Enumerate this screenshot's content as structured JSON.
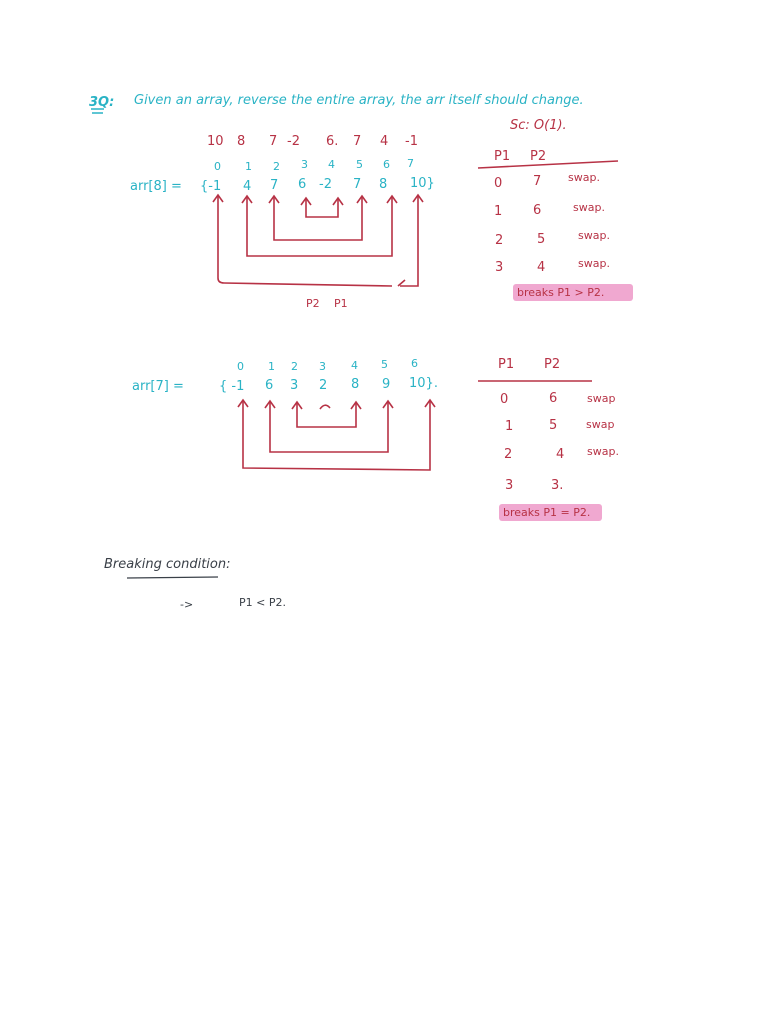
{
  "question": {
    "label": "3Q:",
    "text": "Given an array, reverse the entire array, the arr itself should change.",
    "space": "Sc: O(1)."
  },
  "example1": {
    "reversed": [
      "10",
      "8",
      "7",
      "-2",
      "6.",
      "7",
      "4",
      "-1"
    ],
    "indices": [
      "0",
      "1",
      "2",
      "3",
      "4",
      "5",
      "6",
      "7"
    ],
    "arr_label": "arr[8] =",
    "values": [
      "{-1",
      "4",
      "7",
      "6",
      "-2",
      "7",
      "8",
      "10}"
    ],
    "pointer_labels": [
      "P2",
      "P1"
    ],
    "table": {
      "headers": [
        "P1",
        "P2"
      ],
      "rows": [
        [
          "0",
          "7",
          "swap."
        ],
        [
          "1",
          "6",
          "swap."
        ],
        [
          "2",
          "5",
          "swap."
        ],
        [
          "3",
          "4",
          "swap."
        ]
      ],
      "break_note": "breaks  P1 > P2."
    }
  },
  "example2": {
    "indices": [
      "0",
      "1",
      "2",
      "3",
      "4",
      "5",
      "6"
    ],
    "arr_label": "arr[7] =",
    "values": [
      "{ -1",
      "6",
      "3",
      "2",
      "8",
      "9",
      "10}."
    ],
    "table": {
      "headers": [
        "P1",
        "P2"
      ],
      "rows": [
        [
          "0",
          "6",
          "swap"
        ],
        [
          "1",
          "5",
          "swap"
        ],
        [
          "2",
          "4",
          "swap."
        ],
        [
          "3",
          "3.",
          ""
        ]
      ],
      "break_note": "breaks  P1 = P2."
    }
  },
  "condition": {
    "title": "Breaking condition:",
    "arrow": "->",
    "rule": "P1 < P2."
  },
  "colors": {
    "teal": "#2ab3c5",
    "red": "#b73245",
    "highlight": "#ee9fcb",
    "dark": "#3a4048"
  }
}
